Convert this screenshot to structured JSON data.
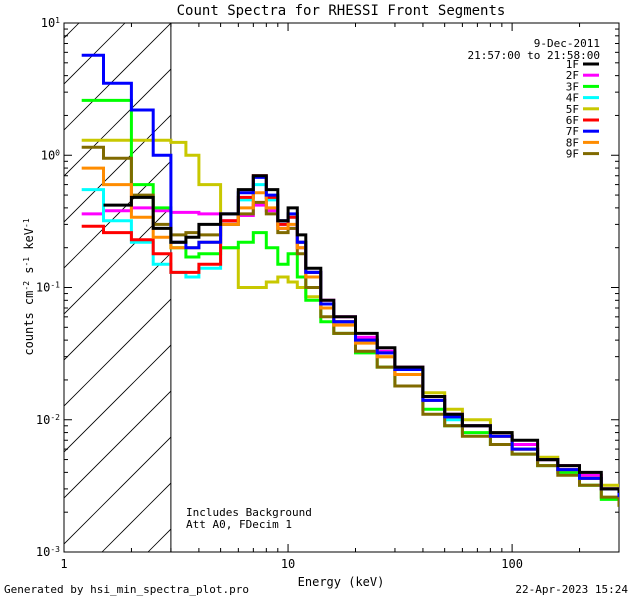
{
  "chart_data": {
    "type": "line",
    "title": "Count Spectra for RHESSI Front Segments",
    "xlabel": "Energy (keV)",
    "ylabel": "counts cm^-2 s^-1 keV^-1",
    "xscale": "log",
    "yscale": "log",
    "xlim": [
      1,
      300
    ],
    "ylim": [
      0.001,
      10
    ],
    "x_tick_labels": [
      "1",
      "10",
      "100"
    ],
    "y_tick_labels": [
      "10^-3",
      "10^-2",
      "10^-1",
      "10^0",
      "10^1"
    ],
    "date": "9-Dec-2011",
    "time_range": "21:57:00 to 21:58:00",
    "excluded_region": [
      1,
      3
    ],
    "annotations": [
      "Includes Background",
      "Att A0, FDecim 1"
    ],
    "series": [
      {
        "name": "1F",
        "color": "#000000",
        "x": [
          1.5,
          2,
          2.5,
          3,
          3.5,
          4,
          5,
          6,
          7,
          8,
          9,
          10,
          11,
          12,
          14,
          16,
          20,
          25,
          30,
          40,
          50,
          60,
          80,
          100,
          130,
          160,
          200,
          250,
          300
        ],
        "y": [
          0.42,
          0.48,
          0.28,
          0.22,
          0.24,
          0.3,
          0.36,
          0.55,
          0.7,
          0.55,
          0.32,
          0.4,
          0.25,
          0.14,
          0.08,
          0.06,
          0.045,
          0.035,
          0.025,
          0.015,
          0.011,
          0.009,
          0.008,
          0.007,
          0.005,
          0.0045,
          0.004,
          0.003,
          0.0028
        ]
      },
      {
        "name": "2F",
        "color": "#ff00ff",
        "x": [
          1.2,
          1.5,
          2,
          2.5,
          3,
          3.5,
          4,
          5,
          6,
          7,
          8,
          9,
          10,
          11,
          12,
          14,
          16,
          20,
          25,
          30,
          40,
          50,
          60,
          80,
          100,
          130,
          160,
          200,
          250,
          300
        ],
        "y": [
          0.36,
          0.38,
          0.4,
          0.38,
          0.37,
          0.37,
          0.36,
          0.32,
          0.35,
          0.42,
          0.38,
          0.28,
          0.28,
          0.2,
          0.13,
          0.08,
          0.06,
          0.042,
          0.033,
          0.025,
          0.015,
          0.011,
          0.009,
          0.0075,
          0.0065,
          0.005,
          0.0045,
          0.0038,
          0.003,
          0.0028
        ]
      },
      {
        "name": "3F",
        "color": "#00ff00",
        "x": [
          1.2,
          1.5,
          2,
          2.5,
          3,
          3.5,
          4,
          5,
          6,
          7,
          8,
          9,
          10,
          11,
          12,
          14,
          16,
          20,
          25,
          30,
          40,
          50,
          60,
          80,
          100,
          130,
          160,
          200,
          250,
          300
        ],
        "y": [
          2.6,
          2.6,
          0.6,
          0.4,
          0.2,
          0.17,
          0.18,
          0.2,
          0.22,
          0.26,
          0.2,
          0.15,
          0.18,
          0.12,
          0.08,
          0.055,
          0.045,
          0.032,
          0.025,
          0.018,
          0.012,
          0.009,
          0.008,
          0.0065,
          0.0055,
          0.0045,
          0.004,
          0.0032,
          0.0025,
          0.0022
        ]
      },
      {
        "name": "4F",
        "color": "#00ffff",
        "x": [
          1.2,
          1.5,
          2,
          2.5,
          3,
          3.5,
          4,
          5,
          6,
          7,
          8,
          9,
          10,
          11,
          12,
          14,
          16,
          20,
          25,
          30,
          40,
          50,
          60,
          80,
          100,
          130,
          160,
          200,
          250,
          300
        ],
        "y": [
          0.55,
          0.32,
          0.22,
          0.15,
          0.13,
          0.12,
          0.14,
          0.3,
          0.46,
          0.6,
          0.46,
          0.3,
          0.34,
          0.22,
          0.13,
          0.075,
          0.055,
          0.04,
          0.032,
          0.024,
          0.014,
          0.01,
          0.009,
          0.0075,
          0.006,
          0.005,
          0.0042,
          0.0036,
          0.003,
          0.0026
        ]
      },
      {
        "name": "5F",
        "color": "#c8c800",
        "x": [
          1.2,
          1.5,
          2,
          2.5,
          3,
          3.5,
          4,
          5,
          6,
          7,
          8,
          9,
          10,
          11,
          12,
          14,
          16,
          20,
          25,
          30,
          40,
          50,
          60,
          80,
          100,
          130,
          160,
          200,
          250,
          300
        ],
        "y": [
          1.3,
          1.3,
          1.3,
          1.3,
          1.25,
          1.0,
          0.6,
          0.2,
          0.1,
          0.1,
          0.11,
          0.12,
          0.11,
          0.1,
          0.085,
          0.07,
          0.055,
          0.04,
          0.03,
          0.025,
          0.016,
          0.012,
          0.01,
          0.008,
          0.0065,
          0.0052,
          0.0045,
          0.0038,
          0.0032,
          0.0028
        ]
      },
      {
        "name": "6F",
        "color": "#ff0000",
        "x": [
          1.2,
          1.5,
          2,
          2.5,
          3,
          3.5,
          4,
          5,
          6,
          7,
          8,
          9,
          10,
          11,
          12,
          14,
          16,
          20,
          25,
          30,
          40,
          50,
          60,
          80,
          100,
          130,
          160,
          200,
          250,
          300
        ],
        "y": [
          0.29,
          0.26,
          0.23,
          0.18,
          0.13,
          0.13,
          0.15,
          0.32,
          0.48,
          0.7,
          0.48,
          0.3,
          0.34,
          0.22,
          0.13,
          0.075,
          0.055,
          0.04,
          0.032,
          0.022,
          0.014,
          0.0105,
          0.009,
          0.0075,
          0.006,
          0.005,
          0.0042,
          0.0036,
          0.003,
          0.0026
        ]
      },
      {
        "name": "7F",
        "color": "#0000ff",
        "x": [
          1.2,
          1.5,
          2,
          2.5,
          3,
          3.5,
          4,
          5,
          6,
          7,
          8,
          9,
          10,
          11,
          12,
          14,
          16,
          20,
          25,
          30,
          40,
          50,
          60,
          80,
          100,
          130,
          160,
          200,
          250,
          300
        ],
        "y": [
          5.7,
          3.5,
          2.2,
          1.0,
          0.22,
          0.2,
          0.22,
          0.36,
          0.52,
          0.68,
          0.5,
          0.32,
          0.36,
          0.22,
          0.13,
          0.075,
          0.055,
          0.04,
          0.032,
          0.024,
          0.014,
          0.0105,
          0.009,
          0.0075,
          0.006,
          0.005,
          0.0042,
          0.0036,
          0.003,
          0.0026
        ]
      },
      {
        "name": "8F",
        "color": "#ff8c00",
        "x": [
          1.2,
          1.5,
          2,
          2.5,
          3,
          3.5,
          4,
          5,
          6,
          7,
          8,
          9,
          10,
          11,
          12,
          14,
          16,
          20,
          25,
          30,
          40,
          50,
          60,
          80,
          100,
          130,
          160,
          200,
          250,
          300
        ],
        "y": [
          0.8,
          0.6,
          0.34,
          0.24,
          0.2,
          0.2,
          0.22,
          0.3,
          0.4,
          0.52,
          0.4,
          0.28,
          0.3,
          0.2,
          0.12,
          0.07,
          0.052,
          0.038,
          0.03,
          0.022,
          0.014,
          0.0105,
          0.009,
          0.0075,
          0.006,
          0.005,
          0.0042,
          0.0036,
          0.003,
          0.0026
        ]
      },
      {
        "name": "9F",
        "color": "#806a00",
        "x": [
          1.2,
          1.5,
          2,
          2.5,
          3,
          3.5,
          4,
          5,
          6,
          7,
          8,
          9,
          10,
          11,
          12,
          14,
          16,
          20,
          25,
          30,
          40,
          50,
          60,
          80,
          100,
          130,
          160,
          200,
          250,
          300
        ],
        "y": [
          1.15,
          0.95,
          0.5,
          0.3,
          0.25,
          0.26,
          0.25,
          0.3,
          0.36,
          0.44,
          0.36,
          0.26,
          0.28,
          0.18,
          0.1,
          0.06,
          0.045,
          0.033,
          0.025,
          0.018,
          0.011,
          0.009,
          0.0075,
          0.0065,
          0.0055,
          0.0045,
          0.0038,
          0.0032,
          0.0026,
          0.0022
        ]
      }
    ]
  },
  "footer": {
    "generated_by": "Generated by hsi_min_spectra_plot.pro",
    "timestamp": "22-Apr-2023 15:24"
  }
}
